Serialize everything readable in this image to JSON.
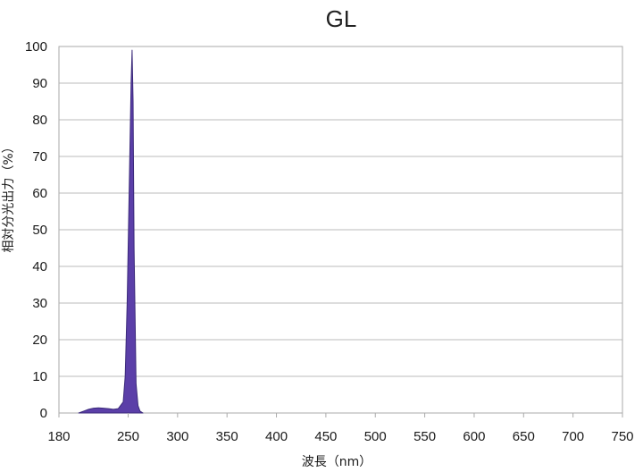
{
  "chart_data": {
    "type": "area",
    "title": "GL",
    "xlabel": "波長（nm）",
    "ylabel": "相対分光出力（%）",
    "xlim": [
      180,
      750
    ],
    "ylim": [
      0,
      100
    ],
    "xticks": [
      "180",
      "250",
      "300",
      "350",
      "400",
      "450",
      "500",
      "550",
      "600",
      "650",
      "700",
      "750"
    ],
    "yticks": [
      "100",
      "90",
      "80",
      "70",
      "60",
      "50",
      "40",
      "30",
      "20",
      "10",
      "0"
    ],
    "grid": true,
    "series": [
      {
        "x": [
          200,
          205,
          210,
          215,
          220,
          225,
          230,
          235,
          240,
          245,
          247,
          249,
          251,
          253,
          254,
          255,
          256,
          258,
          260,
          262,
          265
        ],
        "values": [
          0,
          0.5,
          1.0,
          1.3,
          1.4,
          1.3,
          1.2,
          1.0,
          1.2,
          3,
          10,
          30,
          60,
          90,
          99,
          85,
          45,
          8,
          2,
          0.5,
          0
        ]
      }
    ],
    "colors": {
      "fill": "#5B3FA8",
      "stroke": "#3B2A7A",
      "grid": "#bbbbbb",
      "frame": "#aaaaaa"
    }
  }
}
